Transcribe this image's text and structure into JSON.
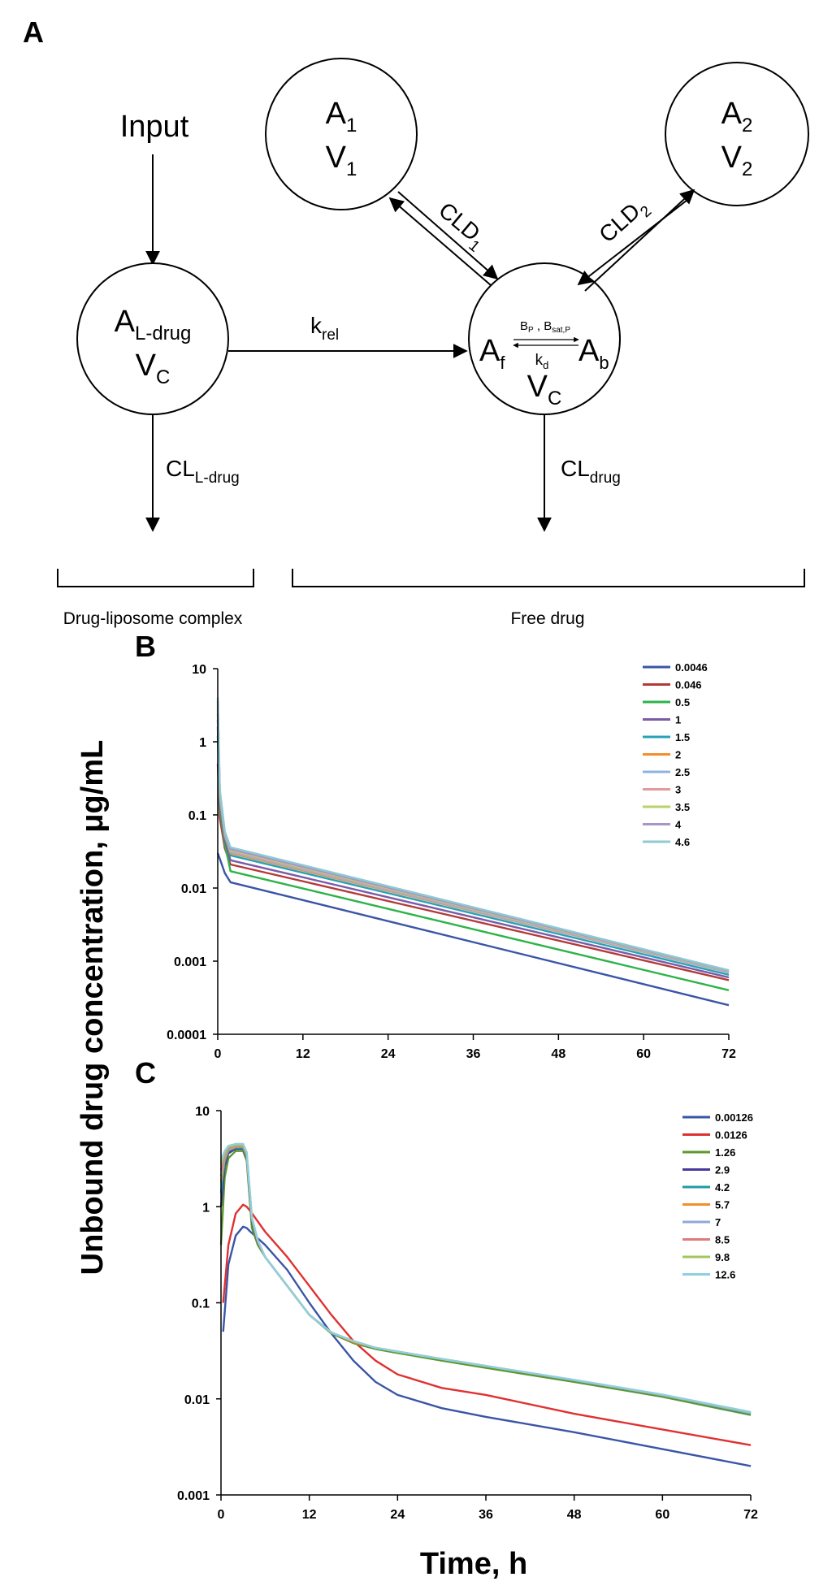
{
  "panels": {
    "a": "A",
    "b": "B",
    "c": "C"
  },
  "diagram": {
    "input": "Input",
    "a1": {
      "a": "A",
      "sub_a": "1",
      "v": "V",
      "sub_v": "1"
    },
    "a2": {
      "a": "A",
      "sub_a": "2",
      "v": "V",
      "sub_v": "2"
    },
    "central": {
      "a": "A",
      "sub_a": "L-drug",
      "v": "V",
      "sub_v": "C"
    },
    "free": {
      "af": "A",
      "sub_af": "f",
      "ab": "A",
      "sub_ab": "b",
      "bp": "B",
      "sub_bp": "P",
      "comma": " , ",
      "bsat": "B",
      "sub_bsat": "sat,P",
      "kd": "k",
      "sub_kd": "d",
      "v": "V",
      "sub_v": "C"
    },
    "cld1": {
      "main": "CLD",
      "sub": "1"
    },
    "cld2": {
      "main": "CLD",
      "sub": "2"
    },
    "krel": {
      "main": "k",
      "sub": "rel"
    },
    "cl_ldrug": {
      "main": "CL",
      "sub": "L-drug"
    },
    "cl_drug": {
      "main": "CL",
      "sub": "drug"
    },
    "bracket_left": "Drug-liposome complex",
    "bracket_right": "Free drug"
  },
  "y_axis_label": "Unbound drug concentration, μg/mL",
  "x_axis_label": "Time, h",
  "chart_data": [
    {
      "type": "line",
      "panel": "B",
      "yscale": "log",
      "ylim": [
        0.0001,
        10
      ],
      "xlim": [
        0,
        72
      ],
      "x_ticks": [
        "0",
        "12",
        "24",
        "36",
        "48",
        "60",
        "72"
      ],
      "y_ticks": [
        "0.0001",
        "0.001",
        "0.01",
        "0.1",
        "1",
        "10"
      ],
      "legend_position": "top-right",
      "series": [
        {
          "name": "0.0046",
          "color": "#3a55a7",
          "x": [
            0,
            0.3,
            1.0,
            1.8,
            72
          ],
          "values": [
            0.03,
            0.025,
            0.016,
            0.012,
            0.00025
          ]
        },
        {
          "name": "0.046",
          "color": "#b23a3a",
          "x": [
            0,
            0.3,
            1.0,
            1.8,
            72
          ],
          "values": [
            0.5,
            0.09,
            0.035,
            0.021,
            0.00055
          ]
        },
        {
          "name": "0.5",
          "color": "#2eb34a",
          "x": [
            0,
            0.3,
            1.0,
            1.8,
            72
          ],
          "values": [
            1.2,
            0.12,
            0.04,
            0.017,
            0.0004
          ]
        },
        {
          "name": "1",
          "color": "#7b5aa6",
          "x": [
            0,
            0.3,
            1.0,
            1.8,
            72
          ],
          "values": [
            1.6,
            0.14,
            0.045,
            0.024,
            0.0006
          ]
        },
        {
          "name": "1.5",
          "color": "#27a2b8",
          "x": [
            0,
            0.3,
            1.0,
            1.8,
            72
          ],
          "values": [
            2.0,
            0.16,
            0.05,
            0.028,
            0.00065
          ]
        },
        {
          "name": "2",
          "color": "#f28e2b",
          "x": [
            0,
            0.3,
            1.0,
            1.8,
            72
          ],
          "values": [
            2.4,
            0.17,
            0.052,
            0.03,
            0.0007
          ]
        },
        {
          "name": "2.5",
          "color": "#8fb3e0",
          "x": [
            0,
            0.3,
            1.0,
            1.8,
            72
          ],
          "values": [
            2.7,
            0.18,
            0.053,
            0.031,
            0.0007
          ]
        },
        {
          "name": "3",
          "color": "#e29a9a",
          "x": [
            0,
            0.3,
            1.0,
            1.8,
            72
          ],
          "values": [
            3.0,
            0.19,
            0.055,
            0.032,
            0.00072
          ]
        },
        {
          "name": "3.5",
          "color": "#b6d36a",
          "x": [
            0,
            0.3,
            1.0,
            1.8,
            72
          ],
          "values": [
            3.3,
            0.2,
            0.056,
            0.033,
            0.00073
          ]
        },
        {
          "name": "4",
          "color": "#a597c6",
          "x": [
            0,
            0.3,
            1.0,
            1.8,
            72
          ],
          "values": [
            3.6,
            0.21,
            0.058,
            0.034,
            0.00074
          ]
        },
        {
          "name": "4.6",
          "color": "#8ec9d6",
          "x": [
            0,
            0.3,
            1.0,
            1.8,
            72
          ],
          "values": [
            4.0,
            0.22,
            0.06,
            0.036,
            0.00075
          ]
        }
      ]
    },
    {
      "type": "line",
      "panel": "C",
      "yscale": "log",
      "ylim": [
        0.001,
        10
      ],
      "xlim": [
        0,
        72
      ],
      "x_ticks": [
        "0",
        "12",
        "24",
        "36",
        "48",
        "60",
        "72"
      ],
      "y_ticks": [
        "0.001",
        "0.01",
        "0.1",
        "1",
        "10"
      ],
      "legend_position": "top-right",
      "series": [
        {
          "name": "0.00126",
          "color": "#3a55a7",
          "x": [
            0.3,
            1,
            2,
            3,
            3.5,
            4,
            6,
            9,
            12,
            15,
            18,
            21,
            24,
            30,
            36,
            48,
            60,
            72
          ],
          "values": [
            0.05,
            0.25,
            0.5,
            0.62,
            0.6,
            0.55,
            0.4,
            0.22,
            0.1,
            0.048,
            0.025,
            0.015,
            0.011,
            0.008,
            0.0065,
            0.0045,
            0.003,
            0.002
          ]
        },
        {
          "name": "0.0126",
          "color": "#e03131",
          "x": [
            0.3,
            1,
            2,
            3,
            3.5,
            4,
            6,
            9,
            12,
            15,
            18,
            21,
            24,
            30,
            36,
            48,
            60,
            72
          ],
          "values": [
            0.1,
            0.4,
            0.85,
            1.05,
            1.0,
            0.9,
            0.55,
            0.3,
            0.15,
            0.075,
            0.04,
            0.025,
            0.018,
            0.013,
            0.011,
            0.007,
            0.0048,
            0.0033
          ]
        },
        {
          "name": "1.26",
          "color": "#5c9a2e",
          "x": [
            0,
            0.5,
            1,
            2,
            3,
            3.5,
            4.2,
            5,
            6,
            9,
            12,
            15,
            18,
            21,
            24,
            30,
            36,
            48,
            60,
            72
          ],
          "values": [
            0.4,
            2.0,
            3.2,
            3.8,
            3.8,
            3.0,
            0.6,
            0.4,
            0.3,
            0.15,
            0.075,
            0.048,
            0.038,
            0.033,
            0.03,
            0.025,
            0.021,
            0.015,
            0.0105,
            0.0068
          ]
        },
        {
          "name": "2.9",
          "color": "#463a9a",
          "x": [
            0,
            0.5,
            1,
            2,
            3,
            3.5,
            4.2,
            5,
            6,
            9,
            12,
            15,
            18,
            21,
            24,
            30,
            36,
            48,
            60,
            72
          ],
          "values": [
            1.0,
            2.6,
            3.6,
            4.0,
            4.0,
            3.2,
            0.7,
            0.42,
            0.3,
            0.15,
            0.075,
            0.049,
            0.039,
            0.034,
            0.031,
            0.026,
            0.022,
            0.0155,
            0.0108,
            0.007
          ]
        },
        {
          "name": "4.2",
          "color": "#1f9ba6",
          "x": [
            0,
            0.5,
            1,
            2,
            3,
            3.5,
            4.2,
            5,
            6,
            9,
            12,
            15,
            18,
            21,
            24,
            30,
            36,
            48,
            60,
            72
          ],
          "values": [
            1.4,
            2.9,
            3.8,
            4.1,
            4.1,
            3.3,
            0.72,
            0.43,
            0.3,
            0.15,
            0.075,
            0.049,
            0.039,
            0.034,
            0.031,
            0.026,
            0.022,
            0.0155,
            0.0108,
            0.007
          ]
        },
        {
          "name": "5.7",
          "color": "#f28e2b",
          "x": [
            0,
            0.5,
            1,
            2,
            3,
            3.5,
            4.2,
            5,
            6,
            9,
            12,
            15,
            18,
            21,
            24,
            30,
            36,
            48,
            60,
            72
          ],
          "values": [
            1.8,
            3.1,
            3.9,
            4.2,
            4.2,
            3.4,
            0.74,
            0.43,
            0.3,
            0.15,
            0.075,
            0.049,
            0.039,
            0.034,
            0.031,
            0.026,
            0.022,
            0.0156,
            0.0109,
            0.0071
          ]
        },
        {
          "name": "7",
          "color": "#8fa9d8",
          "x": [
            0,
            0.5,
            1,
            2,
            3,
            3.5,
            4.2,
            5,
            6,
            9,
            12,
            15,
            18,
            21,
            24,
            30,
            36,
            48,
            60,
            72
          ],
          "values": [
            2.1,
            3.3,
            4.0,
            4.3,
            4.3,
            3.5,
            0.75,
            0.44,
            0.3,
            0.15,
            0.075,
            0.049,
            0.04,
            0.034,
            0.031,
            0.026,
            0.022,
            0.0156,
            0.011,
            0.0071
          ]
        },
        {
          "name": "8.5",
          "color": "#e07b7b",
          "x": [
            0,
            0.5,
            1,
            2,
            3,
            3.5,
            4.2,
            5,
            6,
            9,
            12,
            15,
            18,
            21,
            24,
            30,
            36,
            48,
            60,
            72
          ],
          "values": [
            2.4,
            3.5,
            4.1,
            4.35,
            4.35,
            3.5,
            0.76,
            0.44,
            0.3,
            0.15,
            0.075,
            0.049,
            0.04,
            0.034,
            0.031,
            0.026,
            0.022,
            0.0157,
            0.011,
            0.0072
          ]
        },
        {
          "name": "9.8",
          "color": "#a4c45c",
          "x": [
            0,
            0.5,
            1,
            2,
            3,
            3.5,
            4.2,
            5,
            6,
            9,
            12,
            15,
            18,
            21,
            24,
            30,
            36,
            48,
            60,
            72
          ],
          "values": [
            2.7,
            3.6,
            4.2,
            4.4,
            4.4,
            3.6,
            0.77,
            0.44,
            0.3,
            0.15,
            0.075,
            0.049,
            0.04,
            0.034,
            0.031,
            0.026,
            0.022,
            0.0157,
            0.011,
            0.0072
          ]
        },
        {
          "name": "12.6",
          "color": "#8ecfe0",
          "x": [
            0,
            0.5,
            1,
            2,
            3,
            3.5,
            4.2,
            5,
            6,
            9,
            12,
            15,
            18,
            21,
            24,
            30,
            36,
            48,
            60,
            72
          ],
          "values": [
            3.0,
            3.8,
            4.3,
            4.5,
            4.5,
            3.7,
            0.78,
            0.45,
            0.3,
            0.15,
            0.075,
            0.049,
            0.04,
            0.034,
            0.031,
            0.026,
            0.022,
            0.0158,
            0.0111,
            0.0073
          ]
        }
      ]
    }
  ]
}
